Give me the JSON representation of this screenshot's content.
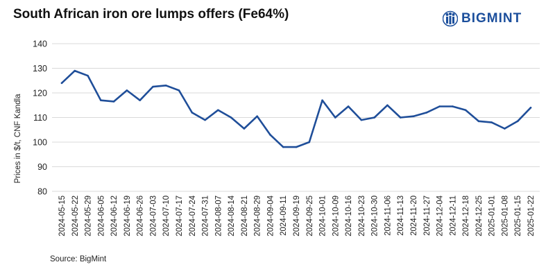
{
  "chart_data": {
    "type": "line",
    "title": "South African iron ore lumps offers (Fe64%)",
    "xlabel": "",
    "ylabel": "Prices in $/t, CNF Kandla",
    "ylim": [
      80,
      140
    ],
    "yticks": [
      80,
      90,
      100,
      110,
      120,
      130,
      140
    ],
    "grid": "horizontal",
    "legend": "none",
    "line_color": "#1f4e99",
    "categories": [
      "2024-05-15",
      "2024-05-22",
      "2024-05-29",
      "2024-06-05",
      "2024-06-12",
      "2024-06-19",
      "2024-06-26",
      "2024-07-03",
      "2024-07-10",
      "2024-07-17",
      "2024-07-24",
      "2024-07-31",
      "2024-08-07",
      "2024-08-14",
      "2024-08-21",
      "2024-08-29",
      "2024-09-04",
      "2024-09-11",
      "2024-09-19",
      "2024-09-25",
      "2024-10-01",
      "2024-10-09",
      "2024-10-16",
      "2024-10-23",
      "2024-10-30",
      "2024-11-06",
      "2024-11-13",
      "2024-11-20",
      "2024-11-27",
      "2024-12-04",
      "2024-12-11",
      "2024-12-18",
      "2024-12-25",
      "2025-01-01",
      "2025-01-08",
      "2025-01-15",
      "2025-01-22"
    ],
    "series": [
      {
        "values": [
          124,
          129,
          127,
          117,
          116.5,
          121,
          117,
          122.5,
          123,
          121,
          112,
          109,
          113,
          110,
          105.5,
          110.5,
          103,
          98,
          98,
          100,
          117,
          110,
          114.5,
          109,
          110,
          115,
          110,
          110.5,
          112,
          114.5,
          114.5,
          113,
          108.5,
          108,
          105.5,
          108.5,
          114
        ]
      }
    ]
  },
  "source": "Source: BigMint",
  "logo": {
    "text": "BIGMINT",
    "icon": "bigmint-logo-icon",
    "color": "#1c4f9c"
  }
}
